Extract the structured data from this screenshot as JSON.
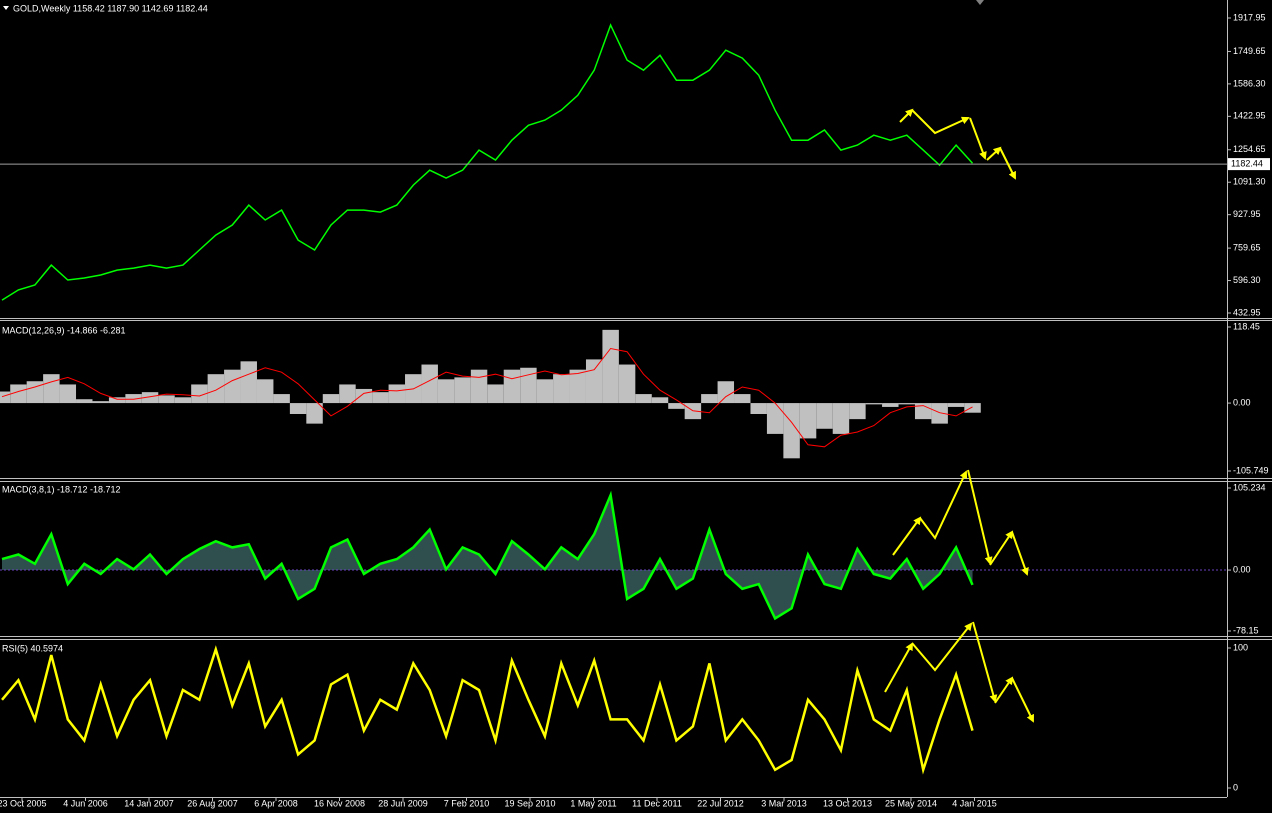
{
  "chart_data": [
    {
      "type": "price",
      "title": "GOLD,Weekly  1158.42 1187.90 1142.69 1182.44",
      "color": "#00ff00",
      "values": [
        498,
        549,
        574,
        674,
        599,
        609,
        624,
        649,
        659,
        674,
        659,
        674,
        750,
        825,
        876,
        976,
        901,
        951,
        800,
        750,
        876,
        951,
        951,
        941,
        976,
        1077,
        1152,
        1112,
        1152,
        1253,
        1203,
        1303,
        1378,
        1404,
        1454,
        1529,
        1655,
        1882,
        1706,
        1655,
        1730,
        1605,
        1605,
        1655,
        1756,
        1716,
        1630,
        1454,
        1303,
        1303,
        1354,
        1253,
        1278,
        1328,
        1303,
        1328,
        1253,
        1177,
        1278,
        1187
      ],
      "ylim": [
        432.95,
        1917.95
      ],
      "yticks": [
        432.95,
        {
          "value": 596.3,
          "label": "596.30"
        },
        759.65,
        927.95,
        {
          "value": 1091.3,
          "label": "1091.30"
        },
        1254.65,
        1422.95,
        {
          "value": 1586.3,
          "label": "1586.30"
        },
        1749.65,
        1917.95
      ],
      "last_price": 1182.44
    },
    {
      "type": "macd",
      "title": "MACD(12,26,9) -14.866 -6.281",
      "histogram": {
        "color": "#c0c0c0",
        "values": [
          18,
          29,
          34,
          45,
          29,
          6,
          3,
          9,
          14,
          17,
          12,
          9,
          29,
          45,
          52,
          65,
          37,
          14,
          -17,
          -32,
          14,
          29,
          22,
          17,
          29,
          45,
          60,
          37,
          40,
          52,
          29,
          52,
          55,
          37,
          45,
          52,
          68,
          114,
          60,
          14,
          9,
          -9,
          -25,
          14,
          34,
          14,
          -17,
          -48,
          -86,
          -55,
          -40,
          -48,
          -25,
          -2,
          -6,
          -2,
          -25,
          -32,
          -6,
          -15
        ]
      },
      "signal": {
        "color": "#ff0000",
        "values": [
          10,
          18,
          25,
          33,
          40,
          30,
          15,
          6,
          6,
          10,
          14,
          13,
          11,
          20,
          35,
          45,
          55,
          48,
          30,
          5,
          -20,
          -5,
          15,
          20,
          19,
          22,
          35,
          48,
          42,
          40,
          45,
          38,
          44,
          50,
          44,
          46,
          52,
          85,
          80,
          45,
          20,
          5,
          -12,
          -15,
          10,
          25,
          20,
          0,
          -30,
          -65,
          -68,
          -50,
          -45,
          -35,
          -15,
          -6,
          -4,
          -15,
          -20,
          -6
        ]
      },
      "ylim": [
        -105.749,
        118.45
      ],
      "yticks": [
        -105.749,
        {
          "value": 0,
          "label": "0.00"
        },
        118.45
      ]
    },
    {
      "type": "oscillator",
      "title": "MACD(3,8,1) -18.712 -18.712",
      "color": "#00ff00",
      "fill": "#2f4f4f",
      "values": [
        14,
        20,
        8,
        46,
        -18,
        8,
        -5,
        14,
        1,
        20,
        -5,
        14,
        27,
        37,
        29,
        33,
        -11,
        8,
        -37,
        -24,
        29,
        39,
        -5,
        8,
        14,
        29,
        52,
        1,
        29,
        20,
        -5,
        37,
        20,
        1,
        29,
        14,
        46,
        96,
        -37,
        -24,
        14,
        -24,
        -11,
        52,
        -5,
        -24,
        -18,
        -62,
        -49,
        20,
        -18,
        -24,
        27,
        -5,
        -11,
        14,
        -24,
        -5,
        29,
        -19
      ],
      "ylim": [
        -78.15,
        105.234
      ],
      "yticks": [
        -78.15,
        {
          "value": 0,
          "label": "0.00"
        },
        105.234
      ]
    },
    {
      "type": "line",
      "title": "RSI(5) 40.5974",
      "color": "#ffff00",
      "values": [
        63,
        77,
        49,
        95,
        49,
        34,
        74,
        37,
        63,
        77,
        37,
        70,
        63,
        99,
        59,
        89,
        44,
        63,
        24,
        34,
        74,
        81,
        41,
        63,
        56,
        89,
        70,
        37,
        77,
        70,
        34,
        91,
        63,
        37,
        89,
        59,
        91,
        49,
        49,
        34,
        74,
        34,
        44,
        89,
        34,
        49,
        34,
        13,
        20,
        63,
        49,
        27,
        84,
        49,
        41,
        70,
        13,
        49,
        81,
        41
      ],
      "ylim": [
        0,
        100
      ],
      "yticks": [
        0,
        100
      ],
      "xtick_labels": [
        "23 Oct 2005",
        "4 Jun 2006",
        "14 Jan 2007",
        "26 Aug 2007",
        "6 Apr 2008",
        "16 Nov 2008",
        "28 Jun 2009",
        "7 Feb 2010",
        "19 Sep 2010",
        "1 May 2011",
        "11 Dec 2011",
        "22 Jul 2012",
        "3 Mar 2013",
        "13 Oct 2013",
        "25 May 2014",
        "4 Jan 2015"
      ]
    }
  ]
}
